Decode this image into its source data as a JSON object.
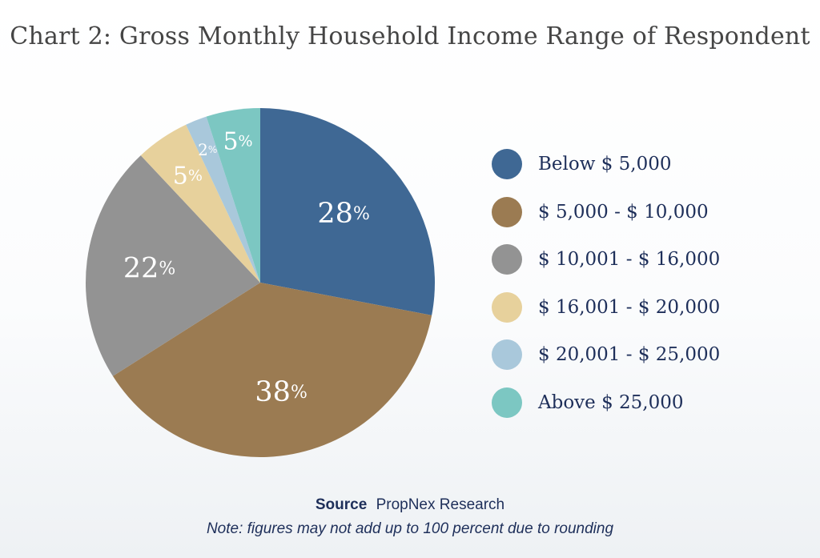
{
  "chart_data": {
    "type": "pie",
    "title": "Chart 2: Gross Monthly Household Income Range of Respondent",
    "slices": [
      {
        "label": "Below $ 5,000",
        "value": 28,
        "display": "28",
        "unit": "%",
        "color": "#3f6894"
      },
      {
        "label": "$ 5,000 - $ 10,000",
        "value": 38,
        "display": "38",
        "unit": "%",
        "color": "#9b7b52"
      },
      {
        "label": "$ 10,001 - $ 16,000",
        "value": 22,
        "display": "22",
        "unit": "%",
        "color": "#939393"
      },
      {
        "label": "$ 16,001 - $ 20,000",
        "value": 5,
        "display": "5",
        "unit": "%",
        "color": "#e7d19c"
      },
      {
        "label": "$ 20,001 - $ 25,000",
        "value": 2,
        "display": "2",
        "unit": "%",
        "color": "#a9c8db"
      },
      {
        "label": "Above $ 25,000",
        "value": 5,
        "display": "5",
        "unit": "%",
        "color": "#7cc7c2"
      }
    ],
    "legend_position": "right"
  },
  "source": {
    "label": "Source",
    "text": "PropNex Research"
  },
  "note": "Note: figures may not add up to 100 percent due to rounding"
}
